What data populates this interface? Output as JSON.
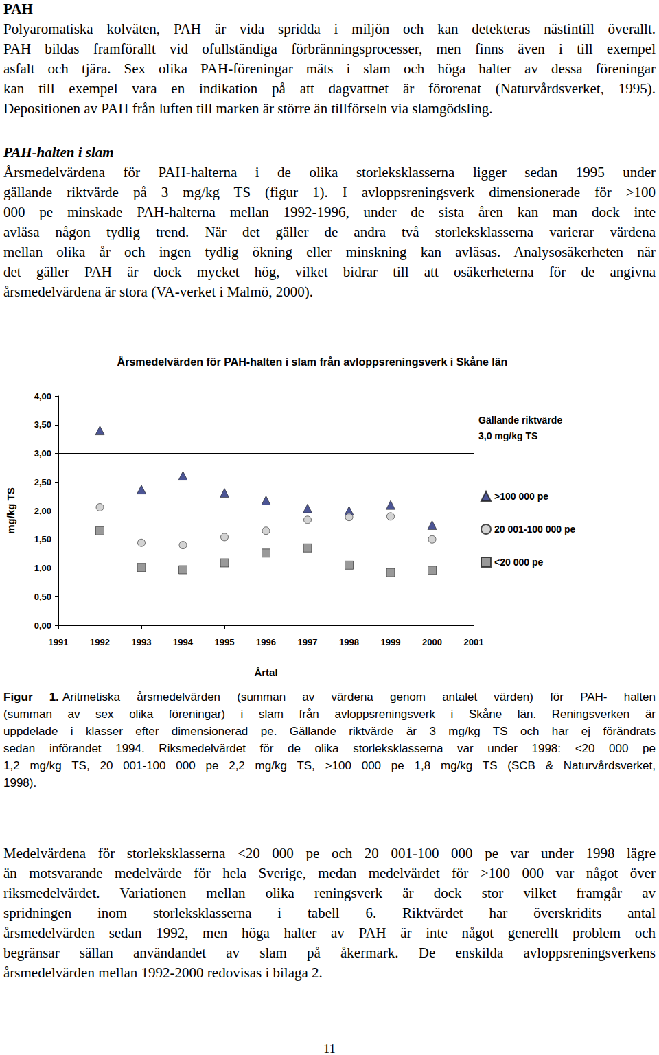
{
  "sections": [
    {
      "heading": "PAH",
      "lines": [
        "Polyaromatiska kolväten, PAH är vida spridda i miljön och kan detekteras nästintill överallt.",
        "PAH bildas framförallt vid ofullständiga förbränningsprocesser, men finns även i till exempel",
        "asfalt och tjära. Sex olika PAH-föreningar mäts i slam och höga halter av dessa föreningar",
        "kan till exempel vara en indikation på att dagvattnet är förorenat (Naturvårdsverket, 1995).",
        "Depositionen av PAH från luften till marken är större än tillförseln via slamgödsling."
      ]
    },
    {
      "heading": "PAH-halten i slam",
      "lines": [
        "Årsmedelvärdena för PAH-halterna i de olika storleksklasserna ligger sedan 1995 under",
        "gällande riktvärde på 3 mg/kg TS (figur 1). I avloppsreningsverk dimensionerade för >100",
        "000 pe minskade PAH-halterna mellan 1992-1996, under de sista åren kan man dock inte",
        "avläsa någon tydlig trend. När det gäller de andra två storleksklasserna varierar värdena",
        "mellan olika år och ingen tydlig ökning eller minskning kan avläsas. Analysosäkerheten när",
        "det gäller PAH är dock mycket hög, vilket bidrar till att osäkerheterna för de angivna",
        "årsmedelvärdena är stora (VA-verket i Malmö, 2000)."
      ]
    }
  ],
  "chart_data": {
    "type": "scatter",
    "title": "Årsmedelvärden för PAH-halten i slam från avloppsreningsverk i Skåne län",
    "x_label": "Årtal",
    "y_label": "mg/kg TS",
    "x": [
      1992,
      1993,
      1994,
      1995,
      1996,
      1997,
      1998,
      1999,
      2000
    ],
    "series": [
      {
        "name": ">100 000 pe",
        "color": "#1f2a7a",
        "marker": "triangle",
        "values": [
          3.4,
          2.37,
          2.61,
          2.31,
          2.18,
          2.04,
          2.0,
          2.1,
          1.75
        ]
      },
      {
        "name": "20 001-100 000 pe",
        "color": "#c8c8c8",
        "marker": "circle",
        "values": [
          2.06,
          1.44,
          1.4,
          1.54,
          1.65,
          1.84,
          1.89,
          1.9,
          1.5
        ]
      },
      {
        "name": "<20 000 pe",
        "color": "#7f7f7f",
        "marker": "square",
        "values": [
          1.65,
          1.01,
          0.97,
          1.09,
          1.26,
          1.35,
          1.05,
          0.92,
          0.96
        ]
      }
    ],
    "xlim": [
      1991,
      2001
    ],
    "xticks": [
      1991,
      1992,
      1993,
      1994,
      1995,
      1996,
      1997,
      1998,
      1999,
      2000,
      2001
    ],
    "ylim": [
      0,
      4
    ],
    "yticks": [
      {
        "value": 0,
        "label": "0,00"
      },
      {
        "value": 0.5,
        "label": "0,50"
      },
      {
        "value": 1,
        "label": "1,00"
      },
      {
        "value": 1.5,
        "label": "1,50"
      },
      {
        "value": 2,
        "label": "2,00"
      },
      {
        "value": 2.5,
        "label": "2,50"
      },
      {
        "value": 3,
        "label": "3,00"
      },
      {
        "value": 3.5,
        "label": "3,50"
      },
      {
        "value": 4,
        "label": "4,00"
      }
    ],
    "grid": false,
    "legend": "right",
    "reference_line": {
      "value": 3,
      "label": [
        "Gällande riktvärde",
        "3,0 mg/kg TS"
      ]
    }
  },
  "caption": {
    "label": "Figur 1.",
    "lines": [
      "Aritmetiska årsmedelvärden (summan av värdena genom antalet värden) för PAH- halten",
      "(summan av sex olika föreningar) i slam från avloppsreningsverk i Skåne län. Reningsverken är",
      "uppdelade i klasser efter dimensionerad pe. Gällande riktvärde är 3 mg/kg TS och har ej förändrats",
      "sedan införandet 1994. Riksmedelvärdet för de olika storleksklasserna var under 1998: <20 000 pe",
      "1,2 mg/kg TS, 20 001-100 000 pe 2,2 mg/kg TS, >100 000 pe 1,8 mg/kg TS (SCB & Naturvårdsverket,",
      "1998)."
    ]
  },
  "closing_paragraph": {
    "lines": [
      "Medelvärdena för storleksklasserna <20 000 pe och 20 001-100 000 pe var under 1998 lägre",
      "än motsvarande medelvärde för hela Sverige, medan medelvärdet för >100 000 var något över",
      "riksmedelvärdet. Variationen mellan olika reningsverk är dock stor vilket framgår av",
      "spridningen inom storleksklasserna i tabell 6. Riktvärdet har överskridits antal",
      "årsmedelvärden sedan 1992, men höga halter av PAH är inte något generellt problem och",
      "begränsar sällan användandet av slam på åkermark. De enskilda avloppsreningsverkens",
      "årsmedelvärden mellan 1992-2000 redovisas i bilaga 2."
    ]
  },
  "page_number": 11
}
